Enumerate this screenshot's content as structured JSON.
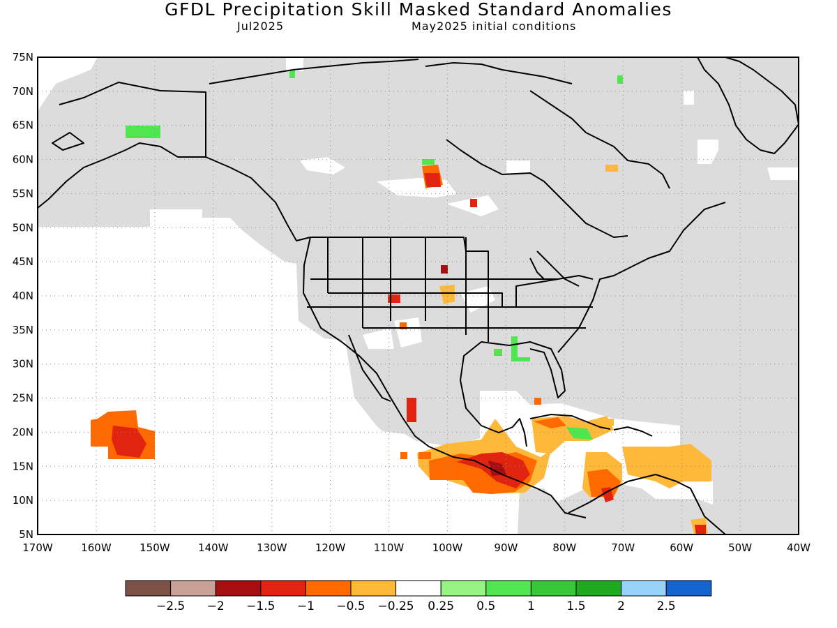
{
  "header": {
    "title": "GFDL Precipitation Skill Masked Standard Anomalies",
    "target_month": "Jul2025",
    "initial_conditions": "May2025 initial conditions"
  },
  "map": {
    "lat_labels": [
      "75N",
      "70N",
      "65N",
      "60N",
      "55N",
      "50N",
      "45N",
      "40N",
      "35N",
      "30N",
      "25N",
      "20N",
      "15N",
      "10N",
      "5N"
    ],
    "lon_labels": [
      "170W",
      "160W",
      "150W",
      "140W",
      "130W",
      "120W",
      "110W",
      "100W",
      "90W",
      "80W",
      "70W",
      "60W",
      "50W",
      "40W"
    ],
    "colors": {
      "mask_gray": "#dcdcdc",
      "land_outline": "#000000",
      "grid": "#8a8a8a"
    }
  },
  "colorbar": {
    "colors": [
      "#7d5146",
      "#c9a096",
      "#a50f0f",
      "#e1240f",
      "#ff6a00",
      "#ffb93a",
      "#ffffff",
      "#96f582",
      "#50e650",
      "#37c837",
      "#1eaa1e",
      "#96d2fa",
      "#1464d2"
    ],
    "tick_labels": [
      "−2.5",
      "−2",
      "−1.5",
      "−1",
      "−0.5",
      "−0.25",
      "0.25",
      "0.5",
      "1",
      "1.5",
      "2",
      "2.5"
    ]
  }
}
